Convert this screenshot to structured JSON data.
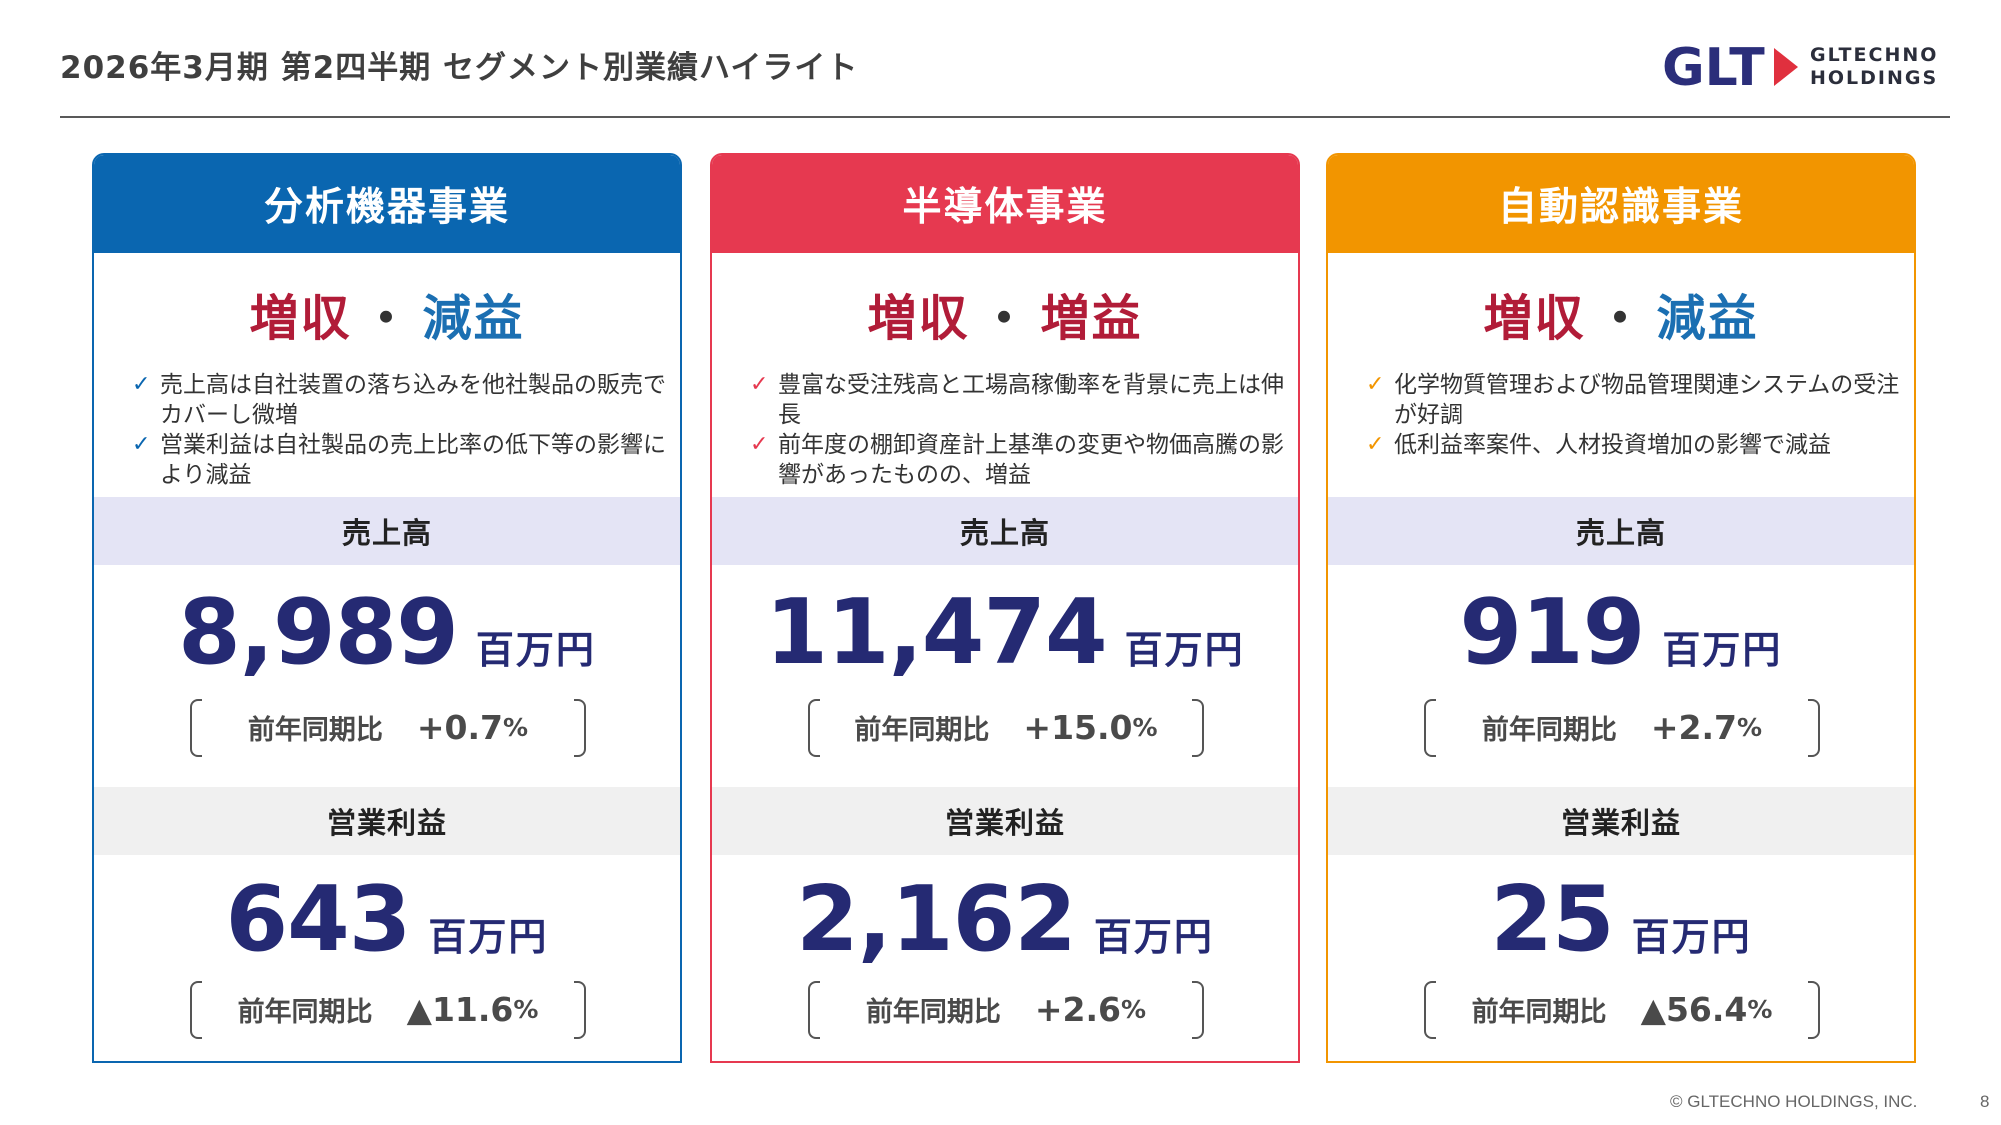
{
  "header": {
    "title": "2026年3月期 第2四半期 セグメント別業績ハイライト",
    "logo_mark": "GLT",
    "logo_name_line1": "GLTECHNO",
    "logo_name_line2": "HOLDINGS"
  },
  "colors": {
    "analytical": "#0a66b0",
    "semiconductor": "#e63950",
    "auto_recognition": "#f29500",
    "logo_navy": "#2b2e7a",
    "logo_red": "#e0303e"
  },
  "common": {
    "dot": "・",
    "check": "✓",
    "sales_label": "売上高",
    "profit_label": "営業利益",
    "unit": "百万円",
    "yoy_label": "前年同期比",
    "percent": "%"
  },
  "segments": [
    {
      "name": "分析機器事業",
      "verdict_sales": "増収",
      "verdict_profit": "減益",
      "bullets": [
        "売上高は自社装置の落ち込みを他社製品の販売でカバーし微増",
        "営業利益は自社製品の売上比率の低下等の影響により減益"
      ],
      "sales_value": "8,989",
      "sales_yoy": "+0.7",
      "profit_value": "643",
      "profit_yoy": "▲11.6"
    },
    {
      "name": "半導体事業",
      "verdict_sales": "増収",
      "verdict_profit": "増益",
      "bullets": [
        "豊富な受注残高と工場高稼働率を背景に売上は伸長",
        "前年度の棚卸資産計上基準の変更や物価高騰の影響があったものの、増益"
      ],
      "sales_value": "11,474",
      "sales_yoy": "+15.0",
      "profit_value": "2,162",
      "profit_yoy": "+2.6"
    },
    {
      "name": "自動認識事業",
      "verdict_sales": "増収",
      "verdict_profit": "減益",
      "bullets": [
        "化学物質管理および物品管理関連システムの受注が好調",
        "低利益率案件、人材投資増加の影響で減益"
      ],
      "sales_value": "919",
      "sales_yoy": "+2.7",
      "profit_value": "25",
      "profit_yoy": "▲56.4"
    }
  ],
  "footer": {
    "copyright": "© GLTECHNO HOLDINGS, INC.",
    "page": "8"
  }
}
